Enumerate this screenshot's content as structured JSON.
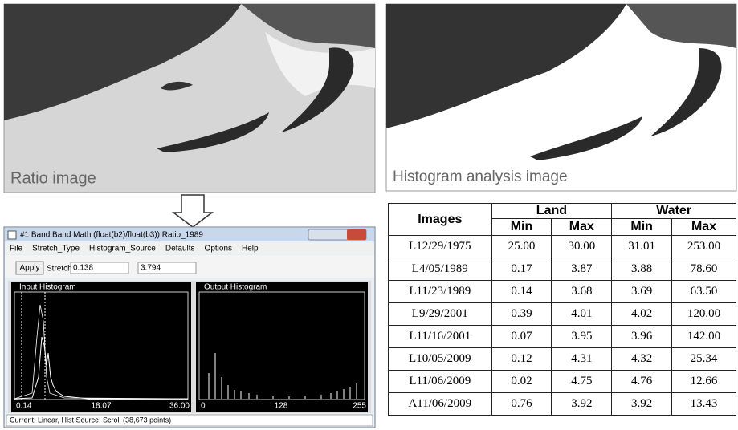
{
  "images": [
    {
      "caption": "Ratio image"
    },
    {
      "caption": "Histogram analysis image"
    }
  ],
  "window": {
    "title": "#1 Band:Band Math (float(b2)/float(b3)):Ratio_1989",
    "menu": [
      "File",
      "Stretch_Type",
      "Histogram_Source",
      "Defaults",
      "Options",
      "Help"
    ],
    "apply": "Apply",
    "stretch_label": "Stretch",
    "stretch_min": "0.138",
    "stretch_max": "3.794",
    "input_histogram": {
      "title": "Input Histogram",
      "axis": [
        "0.14",
        "18.07",
        "36.00"
      ]
    },
    "output_histogram": {
      "title": "Output Histogram",
      "axis": [
        "0",
        "128",
        "255"
      ]
    },
    "status": "Current: Linear, Hist Source: Scroll (38,673 points)"
  },
  "table": {
    "header": [
      "Images",
      "Land",
      "Water"
    ],
    "subheader": [
      "Min",
      "Max",
      "Min",
      "Max"
    ],
    "rows": [
      [
        "L12/29/1975",
        "25.00",
        "30.00",
        "31.01",
        "253.00"
      ],
      [
        "L4/05/1989",
        "0.17",
        "3.87",
        "3.88",
        "78.60"
      ],
      [
        "L11/23/1989",
        "0.14",
        "3.68",
        "3.69",
        "63.50"
      ],
      [
        "L9/29/2001",
        "0.39",
        "4.01",
        "4.02",
        "120.00"
      ],
      [
        "L11/16/2001",
        "0.07",
        "3.95",
        "3.96",
        "142.00"
      ],
      [
        "L10/05/2009",
        "0.12",
        "4.31",
        "4.32",
        "25.34"
      ],
      [
        "L11/06/2009",
        "0.02",
        "4.75",
        "4.76",
        "12.66"
      ],
      [
        "A11/06/2009",
        "0.76",
        "3.92",
        "3.92",
        "13.43"
      ]
    ]
  }
}
